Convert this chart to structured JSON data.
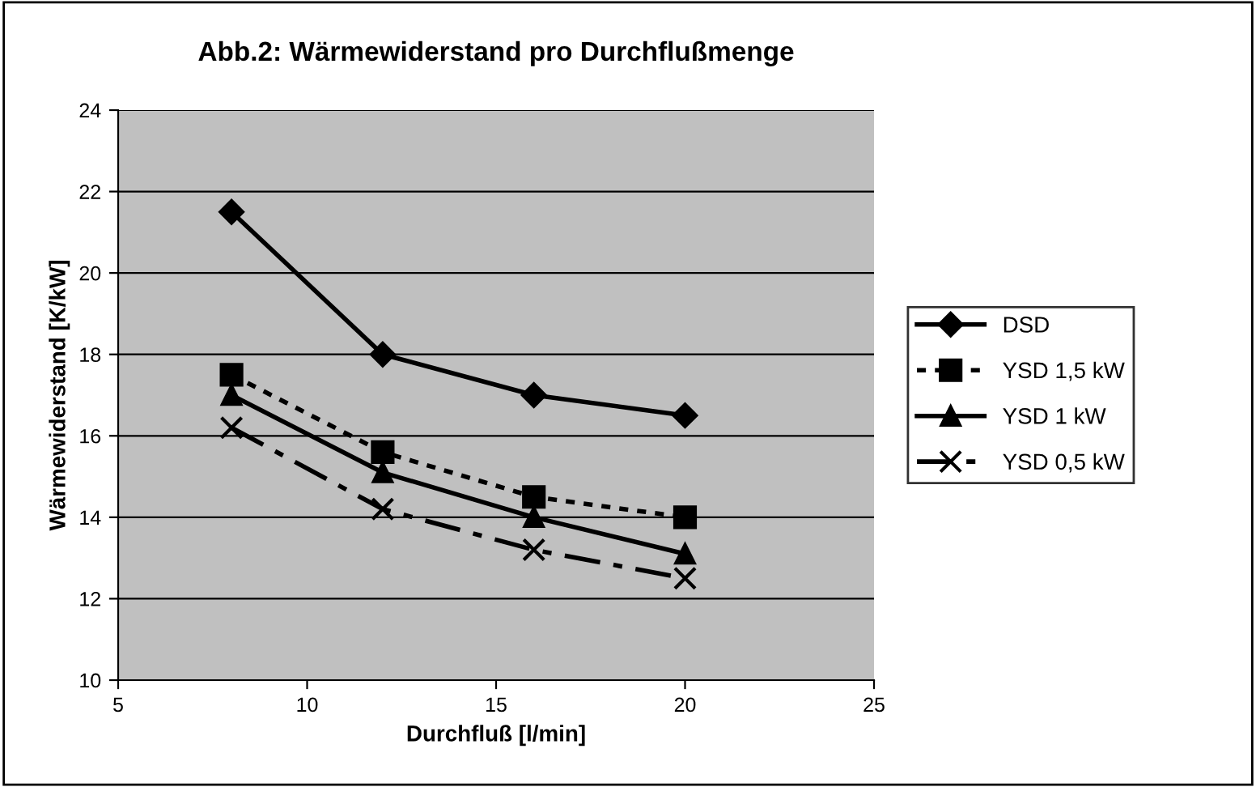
{
  "chart_data": {
    "type": "line",
    "title": "Abb.2: Wärmewiderstand pro Durchflußmenge",
    "xlabel": "Durchfluß [l/min]",
    "ylabel": "Wärmewiderstand [K/kW]",
    "x": [
      8,
      12,
      16,
      20
    ],
    "series": [
      {
        "name": "DSD",
        "color": "#000000",
        "marker": "diamond",
        "line_style": "solid",
        "values": [
          21.5,
          18,
          17,
          16.5
        ]
      },
      {
        "name": "YSD 1,5 kW",
        "color": "#000000",
        "marker": "square",
        "line_style": "dotted",
        "values": [
          17.5,
          15.6,
          14.5,
          14
        ]
      },
      {
        "name": "YSD 1 kW",
        "color": "#000000",
        "marker": "triangle",
        "line_style": "solid",
        "values": [
          17,
          15.1,
          14,
          13.1
        ]
      },
      {
        "name": "YSD 0,5 kW",
        "color": "#000000",
        "marker": "cross",
        "line_style": "dashed",
        "values": [
          16.2,
          14.2,
          13.2,
          12.5
        ]
      }
    ],
    "xlim": [
      5,
      25
    ],
    "xticks": [
      5,
      10,
      15,
      20,
      25
    ],
    "ylim": [
      10,
      24
    ],
    "yticks": [
      10,
      12,
      14,
      16,
      18,
      20,
      22,
      24
    ],
    "grid": "y",
    "legend": "right"
  }
}
